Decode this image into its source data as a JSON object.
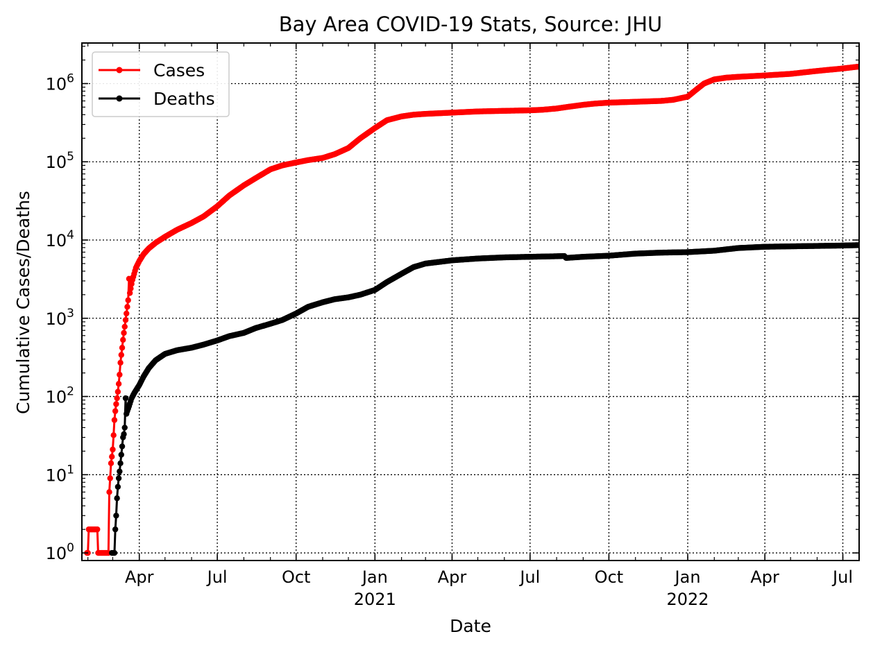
{
  "chart_data": {
    "type": "line",
    "title": "Bay Area COVID-19 Stats, Source: JHU",
    "xlabel": "Date",
    "ylabel": "Cumulative Cases/Deaths",
    "y_scale": "log",
    "ylim": [
      0.8,
      3300000
    ],
    "xlim": [
      "2020-01-25",
      "2022-07-20"
    ],
    "grid": true,
    "grid_style": "dotted",
    "legend_position": "top-left",
    "x_ticks": [
      {
        "date": "2020-04-01",
        "label": "Apr",
        "sublabel": ""
      },
      {
        "date": "2020-07-01",
        "label": "Jul",
        "sublabel": ""
      },
      {
        "date": "2020-10-01",
        "label": "Oct",
        "sublabel": ""
      },
      {
        "date": "2021-01-01",
        "label": "Jan",
        "sublabel": "2021"
      },
      {
        "date": "2021-04-01",
        "label": "Apr",
        "sublabel": ""
      },
      {
        "date": "2021-07-01",
        "label": "Jul",
        "sublabel": ""
      },
      {
        "date": "2021-10-01",
        "label": "Oct",
        "sublabel": ""
      },
      {
        "date": "2022-01-01",
        "label": "Jan",
        "sublabel": "2022"
      },
      {
        "date": "2022-04-01",
        "label": "Apr",
        "sublabel": ""
      },
      {
        "date": "2022-07-01",
        "label": "Jul",
        "sublabel": ""
      }
    ],
    "y_ticks": [
      {
        "value": 1,
        "base": "10",
        "exp": "0"
      },
      {
        "value": 10,
        "base": "10",
        "exp": "1"
      },
      {
        "value": 100,
        "base": "10",
        "exp": "2"
      },
      {
        "value": 1000,
        "base": "10",
        "exp": "3"
      },
      {
        "value": 10000,
        "base": "10",
        "exp": "4"
      },
      {
        "value": 100000,
        "base": "10",
        "exp": "5"
      },
      {
        "value": 1000000,
        "base": "10",
        "exp": "6"
      }
    ],
    "series": [
      {
        "name": "Cases",
        "color": "#ff0000",
        "points": [
          [
            "2020-01-31",
            1
          ],
          [
            "2020-02-01",
            1
          ],
          [
            "2020-02-02",
            2
          ],
          [
            "2020-02-05",
            2
          ],
          [
            "2020-02-08",
            2
          ],
          [
            "2020-02-12",
            2
          ],
          [
            "2020-02-13",
            1
          ],
          [
            "2020-02-16",
            1
          ],
          [
            "2020-02-19",
            1
          ],
          [
            "2020-02-22",
            1
          ],
          [
            "2020-02-25",
            1
          ],
          [
            "2020-02-26",
            6
          ],
          [
            "2020-02-27",
            9
          ],
          [
            "2020-02-28",
            14
          ],
          [
            "2020-02-29",
            17
          ],
          [
            "2020-03-01",
            21
          ],
          [
            "2020-03-02",
            32
          ],
          [
            "2020-03-03",
            50
          ],
          [
            "2020-03-04",
            65
          ],
          [
            "2020-03-05",
            80
          ],
          [
            "2020-03-06",
            95
          ],
          [
            "2020-03-07",
            115
          ],
          [
            "2020-03-08",
            145
          ],
          [
            "2020-03-09",
            190
          ],
          [
            "2020-03-10",
            270
          ],
          [
            "2020-03-11",
            340
          ],
          [
            "2020-03-12",
            420
          ],
          [
            "2020-03-13",
            530
          ],
          [
            "2020-03-14",
            650
          ],
          [
            "2020-03-15",
            780
          ],
          [
            "2020-03-16",
            950
          ],
          [
            "2020-03-17",
            1150
          ],
          [
            "2020-03-18",
            1400
          ],
          [
            "2020-03-19",
            1700
          ],
          [
            "2020-03-20",
            3200
          ],
          [
            "2020-03-21",
            2100
          ],
          [
            "2020-03-22",
            2400
          ],
          [
            "2020-03-23",
            2750
          ],
          [
            "2020-03-24",
            3100
          ],
          [
            "2020-03-26",
            3700
          ],
          [
            "2020-03-28",
            4400
          ],
          [
            "2020-04-01",
            5400
          ],
          [
            "2020-04-06",
            6600
          ],
          [
            "2020-04-12",
            7800
          ],
          [
            "2020-04-20",
            9200
          ],
          [
            "2020-05-01",
            11000
          ],
          [
            "2020-05-15",
            13500
          ],
          [
            "2020-06-01",
            16500
          ],
          [
            "2020-06-15",
            20000
          ],
          [
            "2020-07-01",
            27000
          ],
          [
            "2020-07-15",
            37000
          ],
          [
            "2020-08-01",
            50000
          ],
          [
            "2020-08-15",
            62000
          ],
          [
            "2020-09-01",
            80000
          ],
          [
            "2020-09-15",
            90000
          ],
          [
            "2020-10-01",
            98000
          ],
          [
            "2020-10-15",
            105000
          ],
          [
            "2020-11-01",
            112000
          ],
          [
            "2020-11-15",
            125000
          ],
          [
            "2020-12-01",
            150000
          ],
          [
            "2020-12-15",
            200000
          ],
          [
            "2021-01-01",
            270000
          ],
          [
            "2021-01-15",
            340000
          ],
          [
            "2021-02-01",
            380000
          ],
          [
            "2021-02-15",
            400000
          ],
          [
            "2021-03-01",
            410000
          ],
          [
            "2021-04-01",
            425000
          ],
          [
            "2021-05-01",
            440000
          ],
          [
            "2021-06-01",
            448000
          ],
          [
            "2021-07-01",
            455000
          ],
          [
            "2021-07-15",
            462000
          ],
          [
            "2021-08-01",
            480000
          ],
          [
            "2021-08-15",
            505000
          ],
          [
            "2021-09-01",
            535000
          ],
          [
            "2021-09-15",
            555000
          ],
          [
            "2021-10-01",
            570000
          ],
          [
            "2021-11-01",
            585000
          ],
          [
            "2021-12-01",
            600000
          ],
          [
            "2021-12-15",
            620000
          ],
          [
            "2022-01-01",
            680000
          ],
          [
            "2022-01-10",
            820000
          ],
          [
            "2022-01-20",
            1000000
          ],
          [
            "2022-02-01",
            1130000
          ],
          [
            "2022-02-15",
            1190000
          ],
          [
            "2022-03-01",
            1220000
          ],
          [
            "2022-04-01",
            1270000
          ],
          [
            "2022-05-01",
            1330000
          ],
          [
            "2022-06-01",
            1450000
          ],
          [
            "2022-07-01",
            1560000
          ],
          [
            "2022-07-20",
            1650000
          ]
        ]
      },
      {
        "name": "Deaths",
        "color": "#000000",
        "points": [
          [
            "2020-02-29",
            1
          ],
          [
            "2020-03-02",
            1
          ],
          [
            "2020-03-03",
            1
          ],
          [
            "2020-03-04",
            2
          ],
          [
            "2020-03-05",
            3
          ],
          [
            "2020-03-06",
            5
          ],
          [
            "2020-03-07",
            7
          ],
          [
            "2020-03-08",
            9
          ],
          [
            "2020-03-09",
            11
          ],
          [
            "2020-03-10",
            14
          ],
          [
            "2020-03-11",
            18
          ],
          [
            "2020-03-12",
            23
          ],
          [
            "2020-03-13",
            30
          ],
          [
            "2020-03-14",
            33
          ],
          [
            "2020-03-15",
            40
          ],
          [
            "2020-03-16",
            95
          ],
          [
            "2020-03-17",
            60
          ],
          [
            "2020-03-18",
            65
          ],
          [
            "2020-03-20",
            75
          ],
          [
            "2020-03-23",
            95
          ],
          [
            "2020-03-26",
            110
          ],
          [
            "2020-04-01",
            140
          ],
          [
            "2020-04-06",
            180
          ],
          [
            "2020-04-12",
            230
          ],
          [
            "2020-04-20",
            290
          ],
          [
            "2020-05-01",
            350
          ],
          [
            "2020-05-15",
            390
          ],
          [
            "2020-06-01",
            420
          ],
          [
            "2020-06-15",
            460
          ],
          [
            "2020-07-01",
            520
          ],
          [
            "2020-07-15",
            590
          ],
          [
            "2020-08-01",
            650
          ],
          [
            "2020-08-15",
            750
          ],
          [
            "2020-09-01",
            850
          ],
          [
            "2020-09-15",
            950
          ],
          [
            "2020-10-01",
            1150
          ],
          [
            "2020-10-15",
            1400
          ],
          [
            "2020-11-01",
            1600
          ],
          [
            "2020-11-15",
            1750
          ],
          [
            "2020-12-01",
            1850
          ],
          [
            "2020-12-15",
            2000
          ],
          [
            "2021-01-01",
            2300
          ],
          [
            "2021-01-15",
            2900
          ],
          [
            "2021-02-01",
            3700
          ],
          [
            "2021-02-15",
            4500
          ],
          [
            "2021-03-01",
            5000
          ],
          [
            "2021-04-01",
            5500
          ],
          [
            "2021-05-01",
            5800
          ],
          [
            "2021-06-01",
            6000
          ],
          [
            "2021-07-01",
            6100
          ],
          [
            "2021-08-01",
            6200
          ],
          [
            "2021-08-10",
            6250
          ],
          [
            "2021-08-12",
            5900
          ],
          [
            "2021-09-01",
            6100
          ],
          [
            "2021-10-01",
            6300
          ],
          [
            "2021-11-01",
            6700
          ],
          [
            "2021-12-01",
            6900
          ],
          [
            "2022-01-01",
            7000
          ],
          [
            "2022-02-01",
            7300
          ],
          [
            "2022-03-01",
            7900
          ],
          [
            "2022-04-01",
            8200
          ],
          [
            "2022-05-01",
            8300
          ],
          [
            "2022-06-01",
            8400
          ],
          [
            "2022-07-01",
            8500
          ],
          [
            "2022-07-20",
            8600
          ]
        ]
      }
    ]
  }
}
